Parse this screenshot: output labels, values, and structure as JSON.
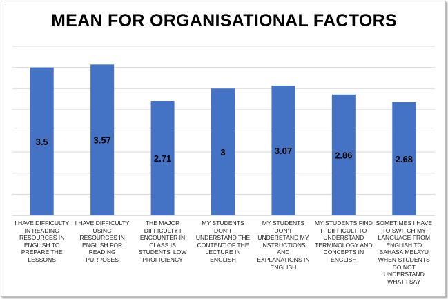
{
  "chart_data": {
    "type": "bar",
    "title": "MEAN FOR ORGANISATIONAL FACTORS",
    "categories": [
      "I HAVE DIFFICULTY IN READING RESOURCES IN ENGLISH TO PREPARE THE LESSONS",
      "I HAVE DIFFICULTY USING RESOURCES IN ENGLISH FOR READING PURPOSES",
      "THE MAJOR DIFFICULTY I ENCOUNTER IN CLASS IS STUDENTS' LOW PROFICIENCY",
      "MY STUDENTS DON'T UNDERSTAND THE CONTENT OF THE LECTURE IN ENGLISH",
      "MY STUDENTS DON'T UNDERSTAND MY INSTRUCTIONS AND EXPLANATIONS IN ENGLISH",
      "MY STUDENTS FIND IT DIFFICULT TO UNDERSTAND TERMINOLOGY AND CONCEPTS IN ENGLISH",
      "SOMETIMES I HAVE TO SWITCH MY LANGUAGE FROM ENGLISH TO BAHASA MELAYU WHEN STUDENTS DO NOT UNDERSTAND WHAT I SAY"
    ],
    "values": [
      3.5,
      3.57,
      2.71,
      3,
      3.07,
      2.86,
      2.68
    ],
    "data_labels": [
      "3.5",
      "3.57",
      "2.71",
      "3",
      "3.07",
      "2.86",
      "2.68"
    ],
    "ylim": [
      0,
      4
    ],
    "grid": true,
    "legend": "none",
    "bar_color": "#4472C4",
    "grid_color": "#d9d9d9"
  }
}
